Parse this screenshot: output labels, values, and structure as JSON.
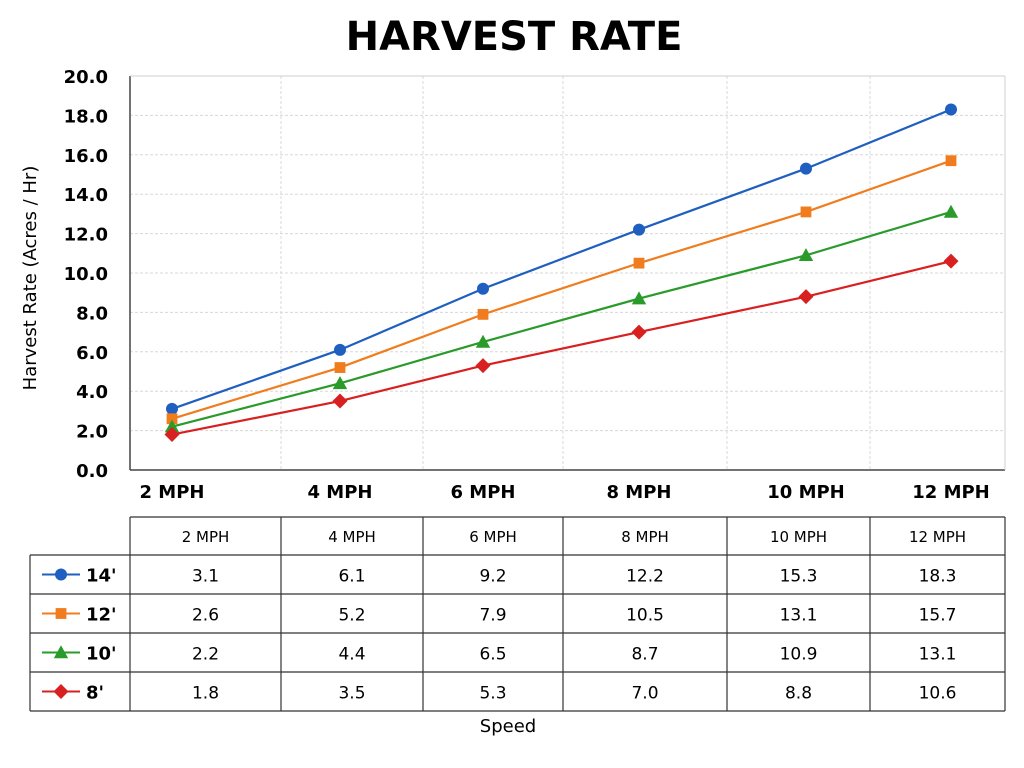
{
  "chart_data": {
    "type": "line",
    "title": "HARVEST RATE",
    "xlabel": "Speed",
    "ylabel": "Harvest Rate (Acres / Hr)",
    "categories": [
      "2 MPH",
      "4 MPH",
      "6 MPH",
      "8 MPH",
      "10 MPH",
      "12 MPH"
    ],
    "y_ticks": [
      "0.0",
      "2.0",
      "4.0",
      "6.0",
      "8.0",
      "10.0",
      "12.0",
      "14.0",
      "16.0",
      "18.0",
      "20.0"
    ],
    "ylim": [
      0,
      20
    ],
    "grid": true,
    "series": [
      {
        "name": "14'",
        "color": "#1f5fbf",
        "marker": "circle",
        "values": [
          3.1,
          6.1,
          9.2,
          12.2,
          15.3,
          18.3
        ],
        "labels": [
          "3.1",
          "6.1",
          "9.2",
          "12.2",
          "15.3",
          "18.3"
        ]
      },
      {
        "name": "12'",
        "color": "#f07c1e",
        "marker": "square",
        "values": [
          2.6,
          5.2,
          7.9,
          10.5,
          13.1,
          15.7
        ],
        "labels": [
          "2.6",
          "5.2",
          "7.9",
          "10.5",
          "13.1",
          "15.7"
        ]
      },
      {
        "name": "10'",
        "color": "#2a9b2a",
        "marker": "triangle",
        "values": [
          2.2,
          4.4,
          6.5,
          8.7,
          10.9,
          13.1
        ],
        "labels": [
          "2.2",
          "4.4",
          "6.5",
          "8.7",
          "10.9",
          "13.1"
        ]
      },
      {
        "name": "8'",
        "color": "#d92020",
        "marker": "diamond",
        "values": [
          1.8,
          3.5,
          5.3,
          7.0,
          8.8,
          10.6
        ],
        "labels": [
          "1.8",
          "3.5",
          "5.3",
          "7.0",
          "8.8",
          "10.6"
        ]
      }
    ]
  }
}
